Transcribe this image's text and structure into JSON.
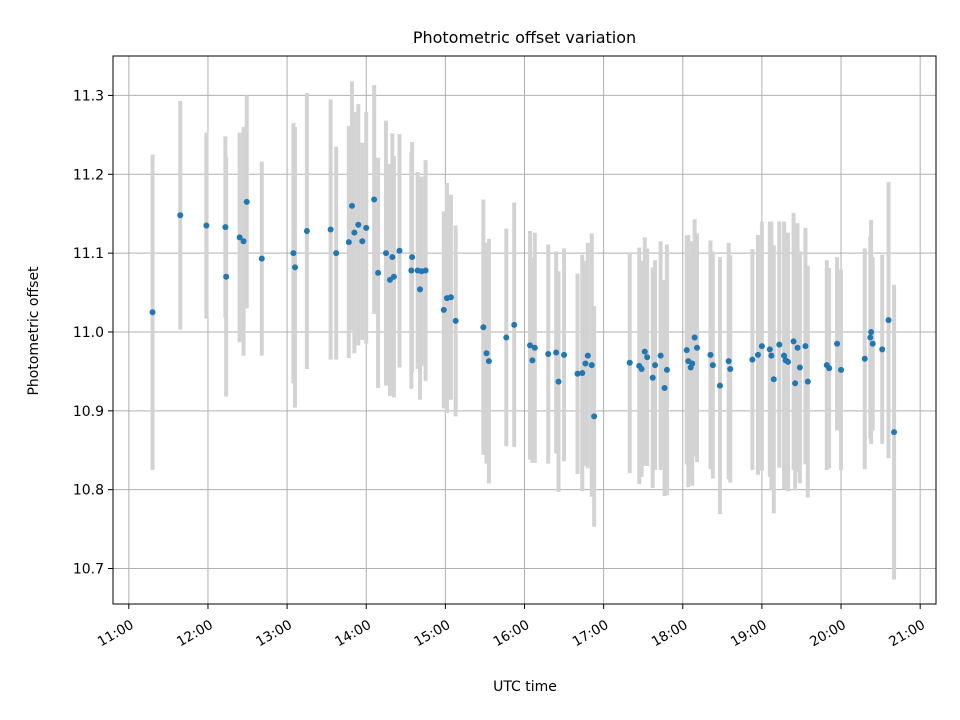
{
  "chart_data": {
    "type": "scatter",
    "title": "Photometric offset variation",
    "xlabel": "UTC time",
    "ylabel": "Photometric offset",
    "x_unit": "UTC time (hours)",
    "xlim": [
      10.8,
      21.2
    ],
    "ylim": [
      10.655,
      11.35
    ],
    "x_ticks": [
      11,
      12,
      13,
      14,
      15,
      16,
      17,
      18,
      19,
      20,
      21
    ],
    "x_tick_labels": [
      "11:00",
      "12:00",
      "13:00",
      "14:00",
      "15:00",
      "16:00",
      "17:00",
      "18:00",
      "19:00",
      "20:00",
      "21:00"
    ],
    "y_ticks": [
      10.7,
      10.8,
      10.9,
      11.0,
      11.1,
      11.2,
      11.3
    ],
    "y_tick_labels": [
      "10.7",
      "10.8",
      "10.9",
      "11.0",
      "11.1",
      "11.2",
      "11.3"
    ],
    "grid": true,
    "colors": {
      "points": "#1f77b4",
      "error_bars": "#d3d3d3",
      "grid": "#b0b0b0",
      "axes": "#000000"
    },
    "series": [
      {
        "x": [
          11.3,
          11.65,
          11.98,
          12.22,
          12.23,
          12.4,
          12.45,
          12.49,
          12.68,
          13.08,
          13.1,
          13.25,
          13.55,
          13.62,
          13.78,
          13.82,
          13.85,
          13.9,
          13.95,
          14.0,
          14.1,
          14.15,
          14.25,
          14.3,
          14.33,
          14.35,
          14.42,
          14.57,
          14.58,
          14.65,
          14.68,
          14.7,
          14.75,
          14.98,
          15.02,
          15.07,
          15.13,
          15.48,
          15.52,
          15.55,
          15.77,
          15.87,
          16.07,
          16.1,
          16.13,
          16.3,
          16.4,
          16.43,
          16.5,
          16.67,
          16.73,
          16.77,
          16.8,
          16.85,
          16.88,
          17.33,
          17.45,
          17.48,
          17.52,
          17.55,
          17.62,
          17.65,
          17.72,
          17.77,
          17.8,
          18.05,
          18.07,
          18.1,
          18.12,
          18.15,
          18.18,
          18.35,
          18.38,
          18.47,
          18.58,
          18.6,
          18.88,
          18.95,
          19.0,
          19.1,
          19.12,
          19.15,
          19.22,
          19.28,
          19.3,
          19.33,
          19.4,
          19.42,
          19.45,
          19.48,
          19.55,
          19.58,
          19.82,
          19.85,
          19.95,
          20.0,
          20.3,
          20.37,
          20.38,
          20.4,
          20.52,
          20.6,
          20.67
        ],
        "y": [
          11.025,
          11.148,
          11.135,
          11.133,
          11.07,
          11.12,
          11.115,
          11.165,
          11.093,
          11.1,
          11.082,
          11.128,
          11.13,
          11.1,
          11.114,
          11.16,
          11.126,
          11.136,
          11.115,
          11.132,
          11.168,
          11.075,
          11.1,
          11.066,
          11.095,
          11.07,
          11.103,
          11.078,
          11.095,
          11.078,
          11.054,
          11.077,
          11.078,
          11.028,
          11.043,
          11.044,
          11.014,
          11.006,
          10.973,
          10.963,
          10.993,
          11.009,
          10.983,
          10.964,
          10.98,
          10.972,
          10.974,
          10.937,
          10.971,
          10.947,
          10.948,
          10.96,
          10.97,
          10.958,
          10.893,
          10.961,
          10.957,
          10.953,
          10.975,
          10.968,
          10.942,
          10.958,
          10.97,
          10.929,
          10.952,
          10.977,
          10.963,
          10.955,
          10.96,
          10.993,
          10.98,
          10.971,
          10.958,
          10.932,
          10.963,
          10.953,
          10.965,
          10.971,
          10.982,
          10.978,
          10.97,
          10.94,
          10.984,
          10.97,
          10.964,
          10.962,
          10.988,
          10.935,
          10.98,
          10.955,
          10.982,
          10.937,
          10.958,
          10.954,
          10.985,
          10.952,
          10.966,
          10.993,
          11.0,
          10.985,
          10.978,
          11.015,
          10.873
        ],
        "error": [
          0.2,
          0.145,
          0.118,
          0.115,
          0.152,
          0.133,
          0.145,
          0.135,
          0.123,
          0.165,
          0.178,
          0.175,
          0.165,
          0.135,
          0.147,
          0.158,
          0.153,
          0.153,
          0.125,
          0.147,
          0.145,
          0.146,
          0.168,
          0.147,
          0.157,
          0.153,
          0.148,
          0.15,
          0.146,
          0.125,
          0.14,
          0.12,
          0.14,
          0.125,
          0.146,
          0.13,
          0.121,
          0.162,
          0.14,
          0.155,
          0.138,
          0.155,
          0.145,
          0.13,
          0.146,
          0.139,
          0.128,
          0.14,
          0.135,
          0.127,
          0.15,
          0.13,
          0.143,
          0.167,
          0.14,
          0.14,
          0.15,
          0.137,
          0.145,
          0.138,
          0.14,
          0.133,
          0.145,
          0.137,
          0.159,
          0.145,
          0.16,
          0.139,
          0.155,
          0.15,
          0.145,
          0.145,
          0.144,
          0.163,
          0.15,
          0.144,
          0.14,
          0.152,
          0.158,
          0.162,
          0.17,
          0.17,
          0.156,
          0.17,
          0.162,
          0.164,
          0.163,
          0.136,
          0.158,
          0.147,
          0.15,
          0.147,
          0.133,
          0.127,
          0.11,
          0.127,
          0.14,
          0.128,
          0.142,
          0.11,
          0.12,
          0.175,
          0.187
        ]
      }
    ]
  }
}
